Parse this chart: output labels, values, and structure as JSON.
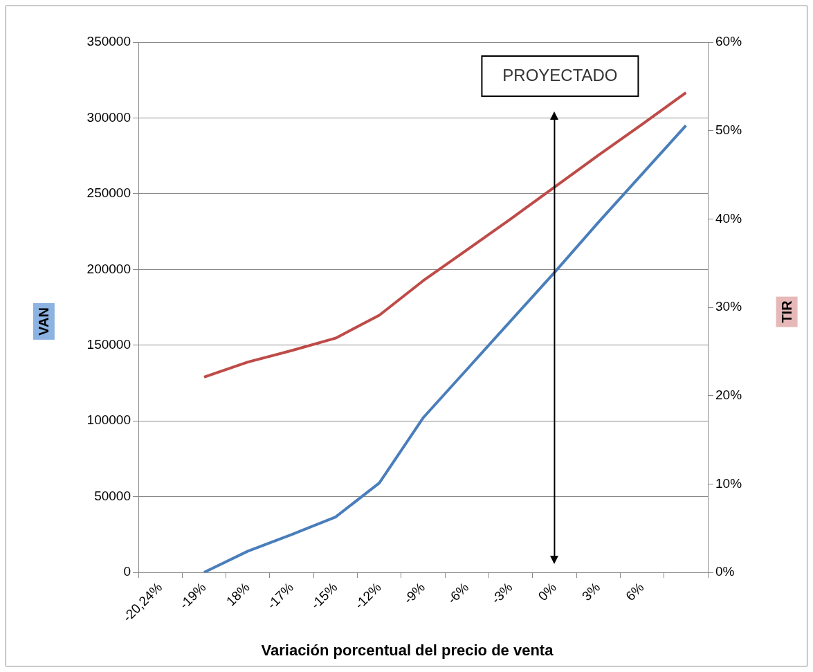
{
  "chart_data": {
    "type": "line",
    "xlabel": "Variación porcentual del precio de venta",
    "ylabel": "VAN",
    "y2label": "TIR",
    "categories": [
      "-20,24%",
      "-19%",
      "18%",
      "-17%",
      "-15%",
      "-12%",
      "-9%",
      "-6%",
      "-3%",
      "0%",
      "3%",
      "6%",
      null
    ],
    "series": [
      {
        "color": "#4a7ebb",
        "values": [
          null,
          0,
          14000,
          25000,
          36500,
          59000,
          102000,
          134000,
          166000,
          198000,
          231000,
          263000,
          295000
        ]
      },
      {
        "color": "#be4b48",
        "axis": "y2",
        "values": [
          null,
          22.1,
          23.8,
          25.1,
          26.5,
          29.1,
          33.0,
          36.5,
          40.0,
          43.6,
          47.2,
          50.7,
          54.3
        ]
      }
    ],
    "ylim": [
      0,
      350000
    ],
    "yticks": [
      0,
      50000,
      100000,
      150000,
      200000,
      250000,
      300000,
      350000
    ],
    "y2lim": [
      0,
      60
    ],
    "y2ticks": [
      {
        "value": 0,
        "label": "0%"
      },
      {
        "value": 10,
        "label": "10%"
      },
      {
        "value": 20,
        "label": "20%"
      },
      {
        "value": 30,
        "label": "30%"
      },
      {
        "value": 40,
        "label": "40%"
      },
      {
        "value": 50,
        "label": "50%"
      },
      {
        "value": 60,
        "label": "60%"
      }
    ],
    "ref_lines": [
      {
        "axis": "x",
        "value": "0%",
        "label": "PROYECTADO",
        "color": "#000000"
      }
    ],
    "grid": "y",
    "legend": false,
    "marker": "none",
    "line_style": "solid"
  }
}
